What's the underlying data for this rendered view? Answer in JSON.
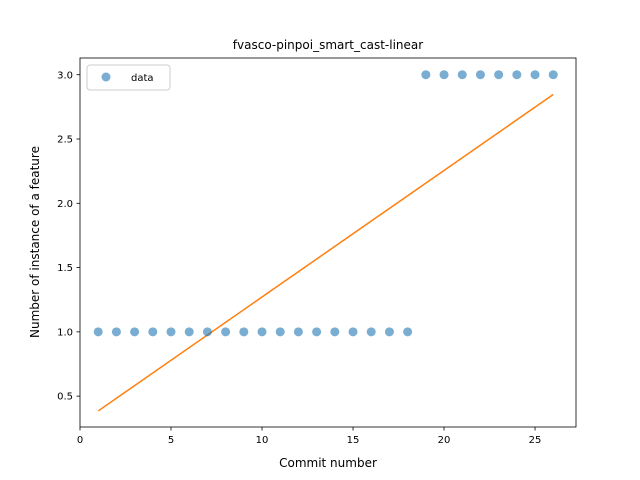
{
  "chart_data": {
    "type": "scatter",
    "title": "fvasco-pinpoi_smart_cast-linear",
    "xlabel": "Commit number",
    "ylabel": "Number of instance of a feature",
    "xlim": [
      0,
      27.25
    ],
    "ylim": [
      0.26,
      3.13
    ],
    "xticks": [
      0,
      5,
      10,
      15,
      20,
      25
    ],
    "xtick_labels": [
      "0",
      "5",
      "10",
      "15",
      "20",
      "25"
    ],
    "yticks": [
      0.5,
      1.0,
      1.5,
      2.0,
      2.5,
      3.0
    ],
    "ytick_labels": [
      "0.5",
      "1.0",
      "1.5",
      "2.0",
      "2.5",
      "3.0"
    ],
    "grid": false,
    "legend": {
      "position": "upper-left",
      "entries": [
        "data"
      ]
    },
    "series": [
      {
        "name": "data",
        "kind": "scatter",
        "color": "#1f77b4",
        "x": [
          1,
          2,
          3,
          4,
          5,
          6,
          7,
          8,
          9,
          10,
          11,
          12,
          13,
          14,
          15,
          16,
          17,
          18,
          19,
          20,
          21,
          22,
          23,
          24,
          25,
          26
        ],
        "y": [
          1,
          1,
          1,
          1,
          1,
          1,
          1,
          1,
          1,
          1,
          1,
          1,
          1,
          1,
          1,
          1,
          1,
          1,
          3,
          3,
          3,
          3,
          3,
          3,
          3,
          3
        ]
      },
      {
        "kind": "line",
        "color": "#ff7f0e",
        "x": [
          1,
          26
        ],
        "y": [
          0.385,
          2.846
        ]
      }
    ]
  }
}
